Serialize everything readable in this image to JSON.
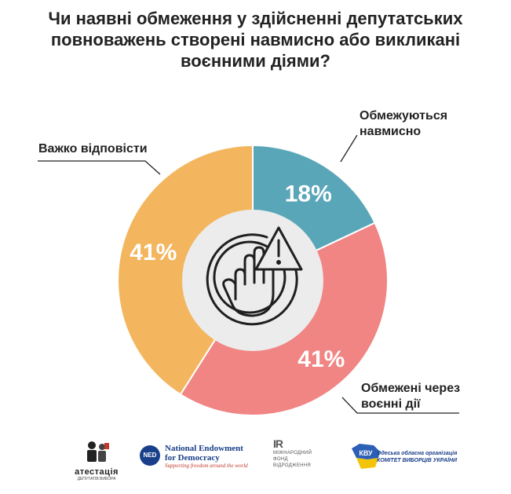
{
  "chart_data": {
    "type": "pie",
    "title": "Чи наявні обмеження у здійсненні депутатських повноважень створені навмисно або викликані воєнними діями?",
    "title_lines": [
      "Чи наявні обмеження у здійсненні депутатських",
      "повноважень створені навмисно або викликані",
      "воєнними діями?"
    ],
    "slices": [
      {
        "label_lines": [
          "Обмежуються",
          "навмисно"
        ],
        "value": 18,
        "value_label": "18%",
        "color": "#5aa6b9"
      },
      {
        "label_lines": [
          "Обмежені через",
          "воєнні дії"
        ],
        "value": 41,
        "value_label": "41%",
        "color": "#f08584"
      },
      {
        "label_lines": [
          "Важко відповісти"
        ],
        "value": 41,
        "value_label": "41%",
        "color": "#f3b65f"
      }
    ],
    "legend": "callouts",
    "center_icon": "hand-warning-icon"
  },
  "logos": {
    "atestatsiya": {
      "name": "атестація",
      "sub": "ДЕПУТАТІВ ВИБОРА"
    },
    "ned": {
      "badge": "NED",
      "name_lines": [
        "National Endowment",
        "for Democracy"
      ],
      "tagline": "Supporting freedom around the world"
    },
    "irf": {
      "mark": "IR",
      "lines": [
        "МІЖНАРОДНИЙ",
        "ФОНД",
        "ВІДРОДЖЕННЯ"
      ]
    },
    "cvu": {
      "mark": "КВУ",
      "lines": [
        "Одеська обласна організація",
        "КОМІТЕТ ВИБОРЦІВ УКРАЇНИ"
      ]
    }
  }
}
